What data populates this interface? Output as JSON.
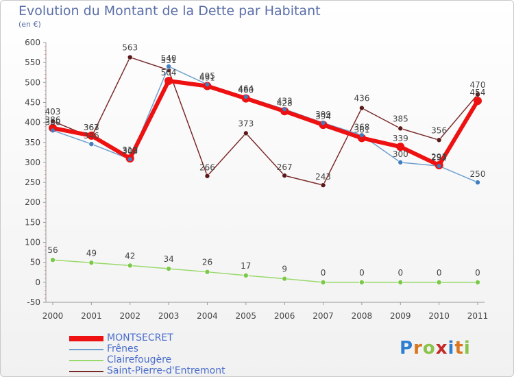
{
  "header": {
    "title": "Evolution du Montant de la Dette par Habitant",
    "unit": "(en €)"
  },
  "logo": {
    "text": "Proxiti",
    "letter_colors": [
      "#2f7fd0",
      "#d9761f",
      "#8bc34a",
      "#c62828",
      "#2f7fd0",
      "#d9761f",
      "#8bc34a"
    ]
  },
  "chart_data": {
    "type": "line",
    "title": "Evolution du Montant de la Dette par Habitant",
    "xlabel": "",
    "ylabel": "(en €)",
    "x": [
      "2000",
      "2001",
      "2002",
      "2003",
      "2004",
      "2005",
      "2006",
      "2007",
      "2008",
      "2009",
      "2010",
      "2011"
    ],
    "ylim": [
      -50,
      600
    ],
    "yticks": [
      -50,
      0,
      50,
      100,
      150,
      200,
      250,
      300,
      350,
      400,
      450,
      500,
      550,
      600
    ],
    "grid": false,
    "legend_position": "bottom-left",
    "series": [
      {
        "name": "Saint-Pierre-d'Entremont",
        "color": "#7b2a2a",
        "marker": "#5a1a1a",
        "values": [
          403,
          363,
          563,
          531,
          266,
          373,
          267,
          243,
          436,
          385,
          356,
          470
        ],
        "labels": [
          "403",
          "363",
          "563",
          "531",
          "266",
          "373",
          "267",
          "243",
          "436",
          "385",
          "356",
          "470"
        ]
      },
      {
        "name": "Clairefougère",
        "color": "#99d96b",
        "marker": "#7cc84a",
        "values": [
          56,
          49,
          42,
          34,
          26,
          17,
          9,
          0,
          0,
          0,
          0,
          0
        ],
        "labels": [
          "56",
          "49",
          "42",
          "34",
          "26",
          "17",
          "9",
          "0",
          "0",
          "0",
          "0",
          "0"
        ]
      },
      {
        "name": "Frênes",
        "color": "#6f9fcf",
        "marker": "#3f7fc0",
        "values": [
          380,
          346,
          308,
          540,
          495,
          464,
          433,
          399,
          368,
          300,
          291,
          250
        ],
        "labels": [
          "380",
          "346",
          "308",
          "540",
          "495",
          "464",
          "433",
          "399",
          "368",
          "300",
          "291",
          "250"
        ]
      },
      {
        "name": "MONTSECRET",
        "color": "#ee1111",
        "marker": "#cc0000",
        "values": [
          386,
          367,
          310,
          504,
          491,
          460,
          428,
          394,
          361,
          339,
          293,
          454
        ],
        "labels": [
          "386",
          "367",
          "310",
          "504",
          "491",
          "460",
          "428",
          "394",
          "361",
          "339",
          "293",
          "454"
        ]
      }
    ],
    "legend_order": [
      "MONTSECRET",
      "Frênes",
      "Clairefougère",
      "Saint-Pierre-d'Entremont"
    ]
  }
}
